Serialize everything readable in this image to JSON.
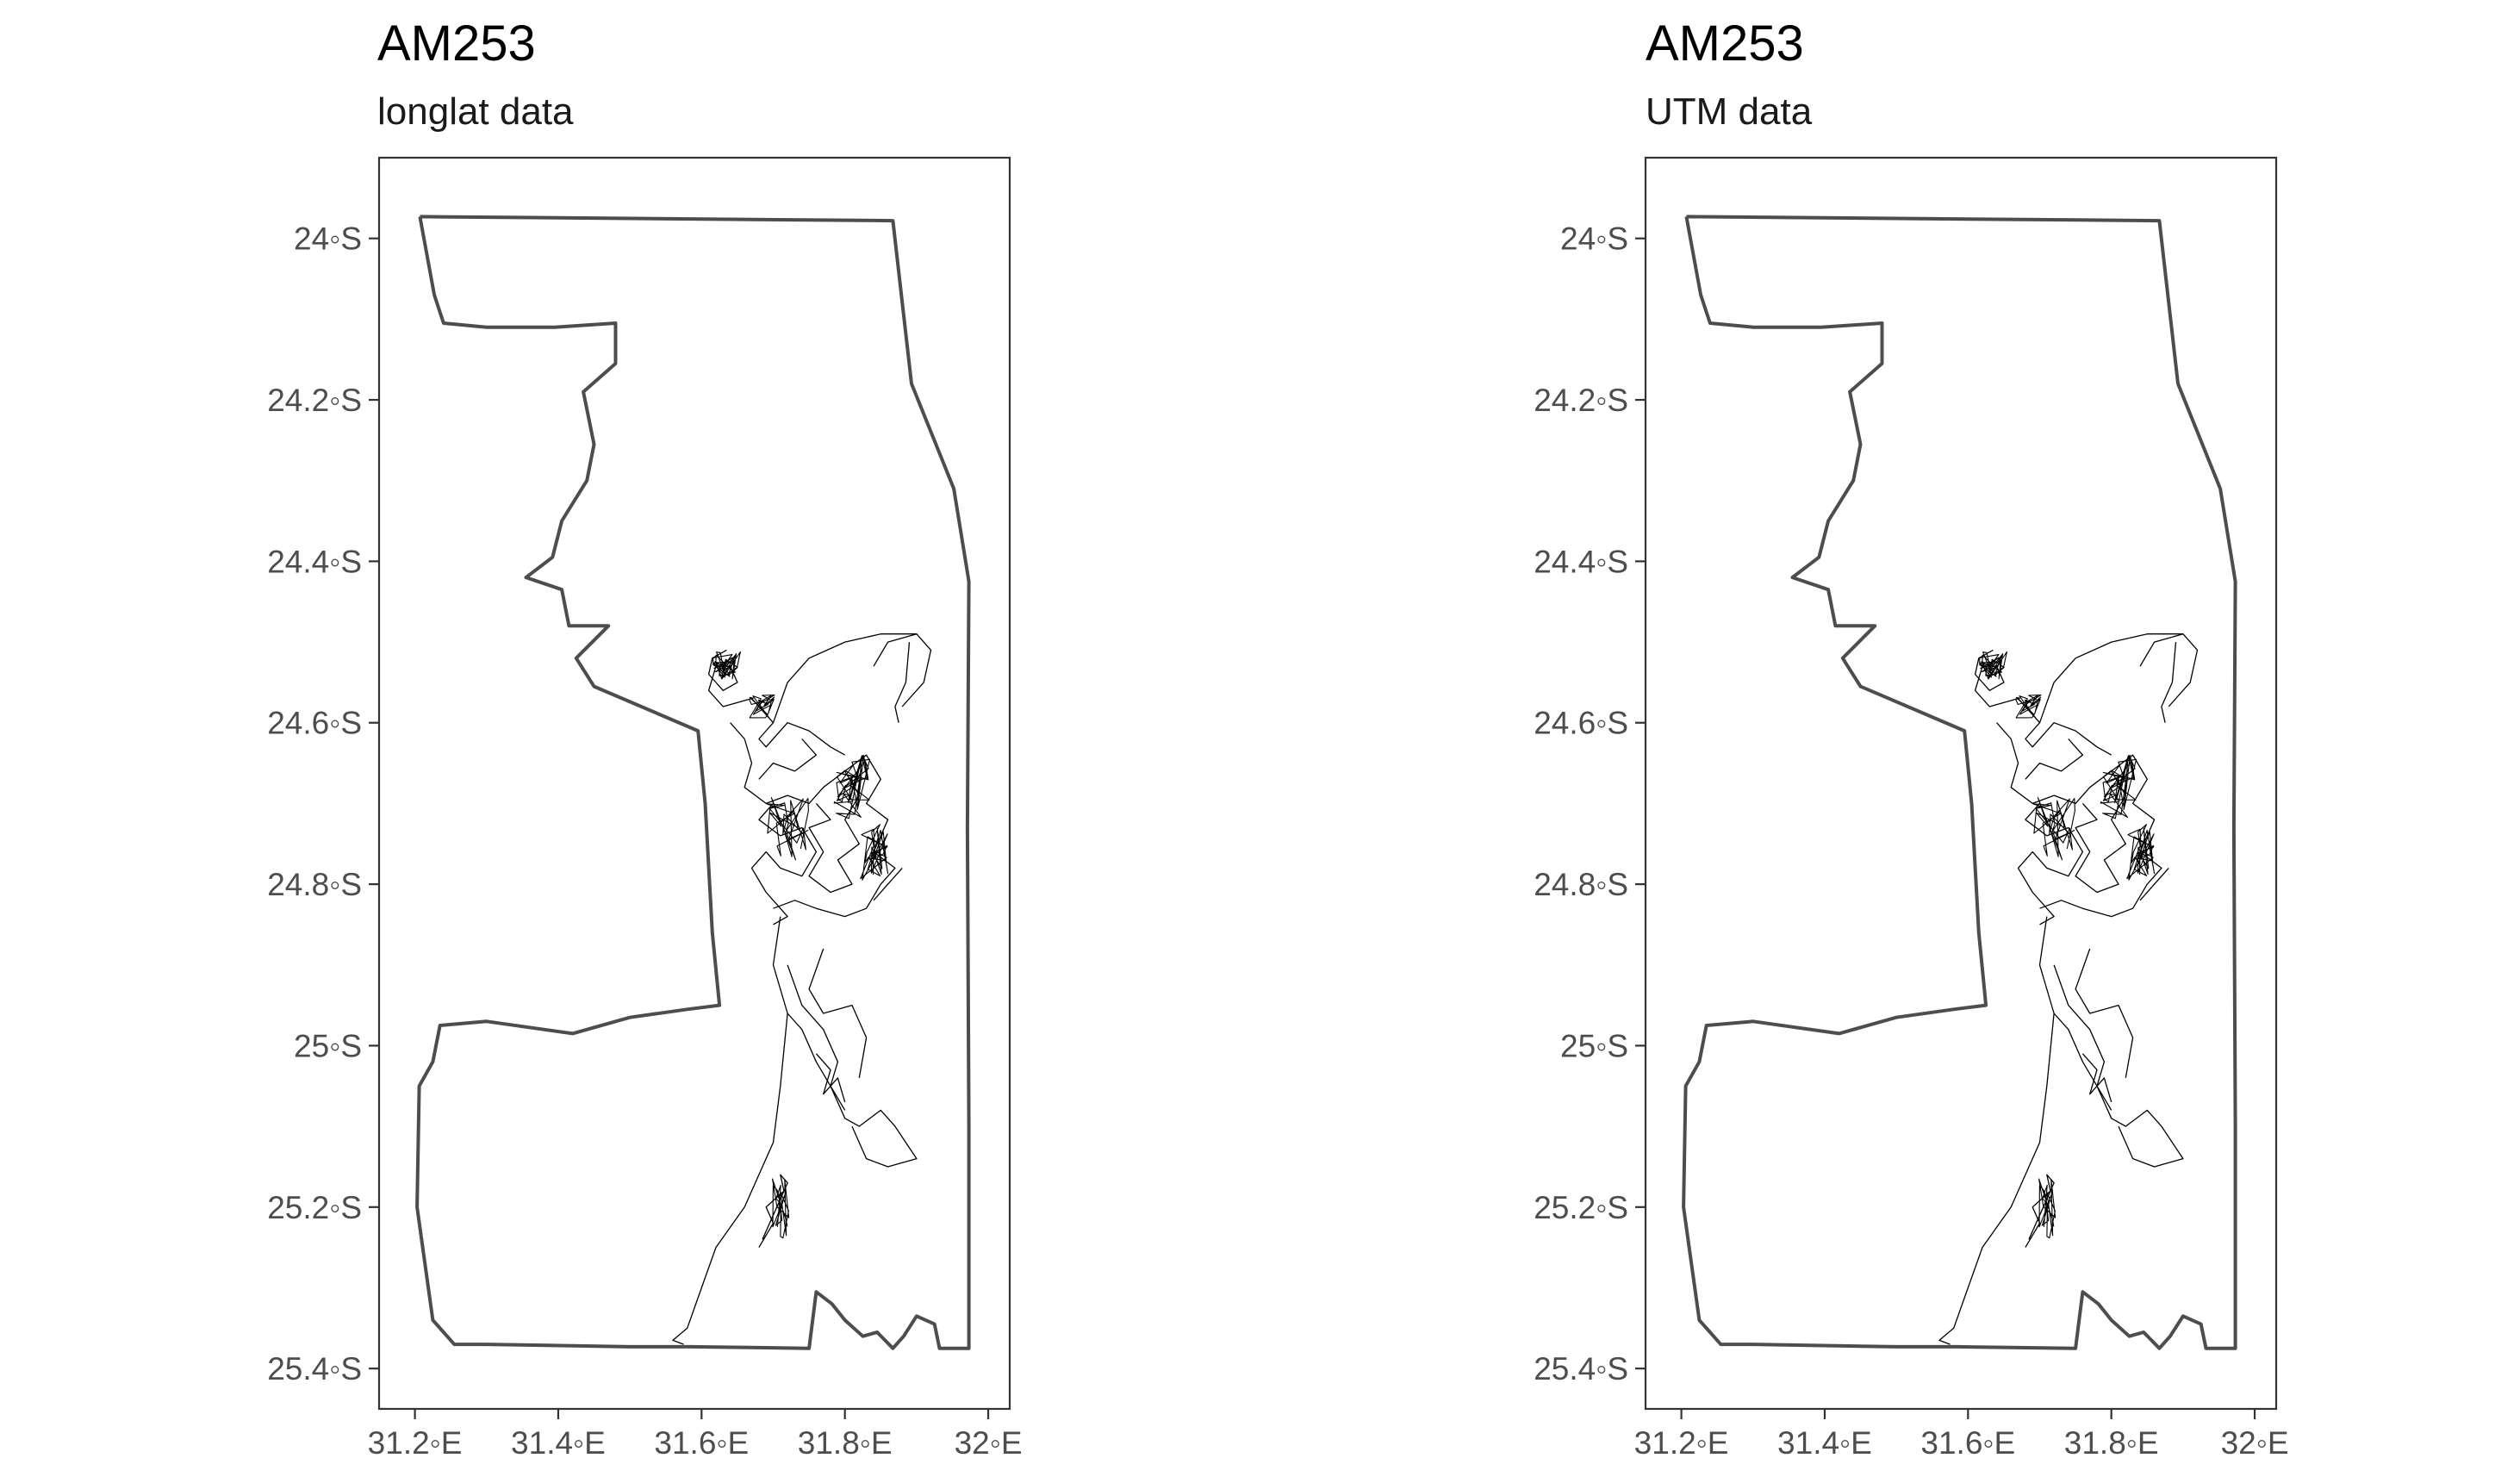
{
  "panels": [
    {
      "title": "AM253",
      "subtitle": "longlat data",
      "y_ticks": [
        "24◦S",
        "24.2◦S",
        "24.4◦S",
        "24.6◦S",
        "24.8◦S",
        "25◦S",
        "25.2◦S",
        "25.4◦S"
      ],
      "x_ticks": [
        "31.2◦E",
        "31.4◦E",
        "31.6◦E",
        "31.8◦E",
        "32◦E"
      ]
    },
    {
      "title": "AM253",
      "subtitle": "UTM data",
      "y_ticks": [
        "24◦S",
        "24.2◦S",
        "24.4◦S",
        "24.6◦S",
        "24.8◦S",
        "25◦S",
        "25.2◦S",
        "25.4◦S"
      ],
      "x_ticks": [
        "31.2◦E",
        "31.4◦E",
        "31.6◦E",
        "31.8◦E",
        "32◦E"
      ]
    }
  ],
  "chart_data": {
    "type": "map",
    "x_range": [
      31.15,
      32.03
    ],
    "y_range": [
      -25.45,
      -23.9
    ],
    "y_tick_values": [
      -24,
      -24.2,
      -24.4,
      -24.6,
      -24.8,
      -25,
      -25.2,
      -25.4
    ],
    "x_tick_values": [
      31.2,
      31.4,
      31.6,
      31.8,
      32.0
    ],
    "boundary": [
      [
        31.207,
        -23.973
      ],
      [
        31.867,
        -23.978
      ],
      [
        31.893,
        -24.18
      ],
      [
        31.952,
        -24.31
      ],
      [
        31.973,
        -24.425
      ],
      [
        31.971,
        -24.73
      ],
      [
        31.973,
        -25.1
      ],
      [
        31.973,
        -25.375
      ],
      [
        31.932,
        -25.375
      ],
      [
        31.925,
        -25.345
      ],
      [
        31.9,
        -25.335
      ],
      [
        31.882,
        -25.36
      ],
      [
        31.867,
        -25.375
      ],
      [
        31.845,
        -25.355
      ],
      [
        31.825,
        -25.36
      ],
      [
        31.8,
        -25.34
      ],
      [
        31.782,
        -25.32
      ],
      [
        31.76,
        -25.305
      ],
      [
        31.75,
        -25.375
      ],
      [
        31.585,
        -25.373
      ],
      [
        31.5,
        -25.373
      ],
      [
        31.3,
        -25.37
      ],
      [
        31.255,
        -25.37
      ],
      [
        31.225,
        -25.34
      ],
      [
        31.203,
        -25.2
      ],
      [
        31.206,
        -25.05
      ],
      [
        31.225,
        -25.02
      ],
      [
        31.235,
        -24.975
      ],
      [
        31.3,
        -24.97
      ],
      [
        31.42,
        -24.985
      ],
      [
        31.5,
        -24.965
      ],
      [
        31.58,
        -24.955
      ],
      [
        31.625,
        -24.95
      ],
      [
        31.615,
        -24.86
      ],
      [
        31.605,
        -24.7
      ],
      [
        31.595,
        -24.61
      ],
      [
        31.45,
        -24.555
      ],
      [
        31.425,
        -24.52
      ],
      [
        31.47,
        -24.48
      ],
      [
        31.415,
        -24.48
      ],
      [
        31.405,
        -24.435
      ],
      [
        31.355,
        -24.42
      ],
      [
        31.392,
        -24.395
      ],
      [
        31.405,
        -24.35
      ],
      [
        31.44,
        -24.3
      ],
      [
        31.45,
        -24.255
      ],
      [
        31.435,
        -24.19
      ],
      [
        31.48,
        -24.155
      ],
      [
        31.48,
        -24.105
      ],
      [
        31.395,
        -24.11
      ],
      [
        31.3,
        -24.11
      ],
      [
        31.24,
        -24.105
      ],
      [
        31.227,
        -24.07
      ],
      [
        31.207,
        -23.973
      ]
    ],
    "tracks": [
      [
        [
          31.635,
          -24.51
        ],
        [
          31.615,
          -24.52
        ],
        [
          31.61,
          -24.54
        ],
        [
          31.63,
          -24.56
        ],
        [
          31.65,
          -24.55
        ],
        [
          31.64,
          -24.53
        ],
        [
          31.62,
          -24.53
        ],
        [
          31.61,
          -24.56
        ],
        [
          31.63,
          -24.58
        ],
        [
          31.67,
          -24.57
        ],
        [
          31.7,
          -24.6
        ],
        [
          31.68,
          -24.62
        ],
        [
          31.69,
          -24.63
        ],
        [
          31.72,
          -24.6
        ],
        [
          31.75,
          -24.61
        ],
        [
          31.78,
          -24.63
        ],
        [
          31.8,
          -24.64
        ]
      ],
      [
        [
          31.7,
          -24.6
        ],
        [
          31.72,
          -24.55
        ],
        [
          31.75,
          -24.52
        ],
        [
          31.8,
          -24.5
        ],
        [
          31.85,
          -24.49
        ],
        [
          31.9,
          -24.49
        ],
        [
          31.86,
          -24.5
        ],
        [
          31.84,
          -24.53
        ]
      ],
      [
        [
          31.9,
          -24.49
        ],
        [
          31.92,
          -24.51
        ],
        [
          31.91,
          -24.55
        ],
        [
          31.88,
          -24.58
        ]
      ],
      [
        [
          31.89,
          -24.5
        ],
        [
          31.885,
          -24.55
        ],
        [
          31.87,
          -24.58
        ],
        [
          31.875,
          -24.6
        ]
      ],
      [
        [
          31.64,
          -24.6
        ],
        [
          31.66,
          -24.62
        ],
        [
          31.67,
          -24.65
        ],
        [
          31.66,
          -24.68
        ],
        [
          31.69,
          -24.7
        ],
        [
          31.72,
          -24.69
        ],
        [
          31.75,
          -24.7
        ],
        [
          31.77,
          -24.68
        ],
        [
          31.8,
          -24.66
        ],
        [
          31.83,
          -24.64
        ],
        [
          31.85,
          -24.67
        ],
        [
          31.83,
          -24.7
        ],
        [
          31.86,
          -24.72
        ],
        [
          31.84,
          -24.76
        ],
        [
          31.87,
          -24.78
        ],
        [
          31.85,
          -24.8
        ],
        [
          31.83,
          -24.83
        ],
        [
          31.8,
          -24.84
        ],
        [
          31.76,
          -24.83
        ],
        [
          31.73,
          -24.82
        ],
        [
          31.7,
          -24.83
        ]
      ],
      [
        [
          31.7,
          -24.7
        ],
        [
          31.68,
          -24.72
        ],
        [
          31.71,
          -24.74
        ],
        [
          31.74,
          -24.73
        ],
        [
          31.76,
          -24.76
        ],
        [
          31.74,
          -24.79
        ],
        [
          31.71,
          -24.78
        ],
        [
          31.69,
          -24.76
        ],
        [
          31.67,
          -24.78
        ],
        [
          31.69,
          -24.81
        ],
        [
          31.72,
          -24.84
        ],
        [
          31.7,
          -24.85
        ]
      ],
      [
        [
          31.8,
          -24.66
        ],
        [
          31.82,
          -24.69
        ],
        [
          31.8,
          -24.72
        ],
        [
          31.82,
          -24.75
        ],
        [
          31.79,
          -24.77
        ],
        [
          31.81,
          -24.8
        ],
        [
          31.78,
          -24.81
        ],
        [
          31.75,
          -24.79
        ],
        [
          31.77,
          -24.76
        ],
        [
          31.75,
          -24.73
        ],
        [
          31.78,
          -24.72
        ],
        [
          31.76,
          -24.7
        ]
      ],
      [
        [
          31.74,
          -24.62
        ],
        [
          31.76,
          -24.64
        ],
        [
          31.73,
          -24.66
        ],
        [
          31.7,
          -24.65
        ],
        [
          31.68,
          -24.67
        ]
      ],
      [
        [
          31.88,
          -24.78
        ],
        [
          31.86,
          -24.8
        ],
        [
          31.84,
          -24.82
        ]
      ],
      [
        [
          31.71,
          -24.84
        ],
        [
          31.7,
          -24.9
        ],
        [
          31.72,
          -24.96
        ],
        [
          31.71,
          -25.05
        ],
        [
          31.7,
          -25.12
        ],
        [
          31.66,
          -25.2
        ],
        [
          31.62,
          -25.25
        ],
        [
          31.6,
          -25.3
        ],
        [
          31.58,
          -25.35
        ],
        [
          31.56,
          -25.365
        ],
        [
          31.575,
          -25.37
        ]
      ],
      [
        [
          31.72,
          -24.96
        ],
        [
          31.74,
          -24.98
        ],
        [
          31.76,
          -25.02
        ],
        [
          31.78,
          -25.05
        ],
        [
          31.8,
          -25.08
        ]
      ],
      [
        [
          31.72,
          -24.9
        ],
        [
          31.74,
          -24.95
        ],
        [
          31.77,
          -24.98
        ],
        [
          31.79,
          -25.02
        ],
        [
          31.78,
          -25.05
        ]
      ],
      [
        [
          31.77,
          -24.88
        ],
        [
          31.75,
          -24.93
        ],
        [
          31.77,
          -24.96
        ],
        [
          31.81,
          -24.95
        ],
        [
          31.83,
          -24.99
        ],
        [
          31.82,
          -25.04
        ]
      ],
      [
        [
          31.78,
          -25.05
        ],
        [
          31.8,
          -25.09
        ],
        [
          31.82,
          -25.1
        ],
        [
          31.85,
          -25.08
        ],
        [
          31.87,
          -25.1
        ],
        [
          31.9,
          -25.14
        ],
        [
          31.86,
          -25.15
        ],
        [
          31.83,
          -25.14
        ],
        [
          31.81,
          -25.1
        ]
      ],
      [
        [
          31.76,
          -25.01
        ],
        [
          31.78,
          -25.03
        ],
        [
          31.77,
          -25.06
        ],
        [
          31.79,
          -25.04
        ],
        [
          31.8,
          -25.07
        ]
      ],
      [
        [
          31.68,
          -25.25
        ],
        [
          31.7,
          -25.22
        ],
        [
          31.69,
          -25.2
        ],
        [
          31.715,
          -25.18
        ],
        [
          31.71,
          -25.16
        ],
        [
          31.72,
          -25.17
        ],
        [
          31.705,
          -25.2
        ],
        [
          31.695,
          -25.22
        ],
        [
          31.685,
          -25.24
        ]
      ]
    ],
    "clusters": [
      {
        "lon": 31.635,
        "lat": -24.53,
        "n": 40,
        "spread_lon": 0.02,
        "spread_lat": 0.018
      },
      {
        "lon": 31.685,
        "lat": -24.58,
        "n": 30,
        "spread_lon": 0.02,
        "spread_lat": 0.015
      },
      {
        "lon": 31.81,
        "lat": -24.68,
        "n": 45,
        "spread_lon": 0.025,
        "spread_lat": 0.04
      },
      {
        "lon": 31.84,
        "lat": -24.76,
        "n": 40,
        "spread_lon": 0.02,
        "spread_lat": 0.035
      },
      {
        "lon": 31.72,
        "lat": -24.73,
        "n": 35,
        "spread_lon": 0.03,
        "spread_lat": 0.04
      },
      {
        "lon": 31.71,
        "lat": -25.2,
        "n": 25,
        "spread_lon": 0.012,
        "spread_lat": 0.04
      }
    ]
  }
}
